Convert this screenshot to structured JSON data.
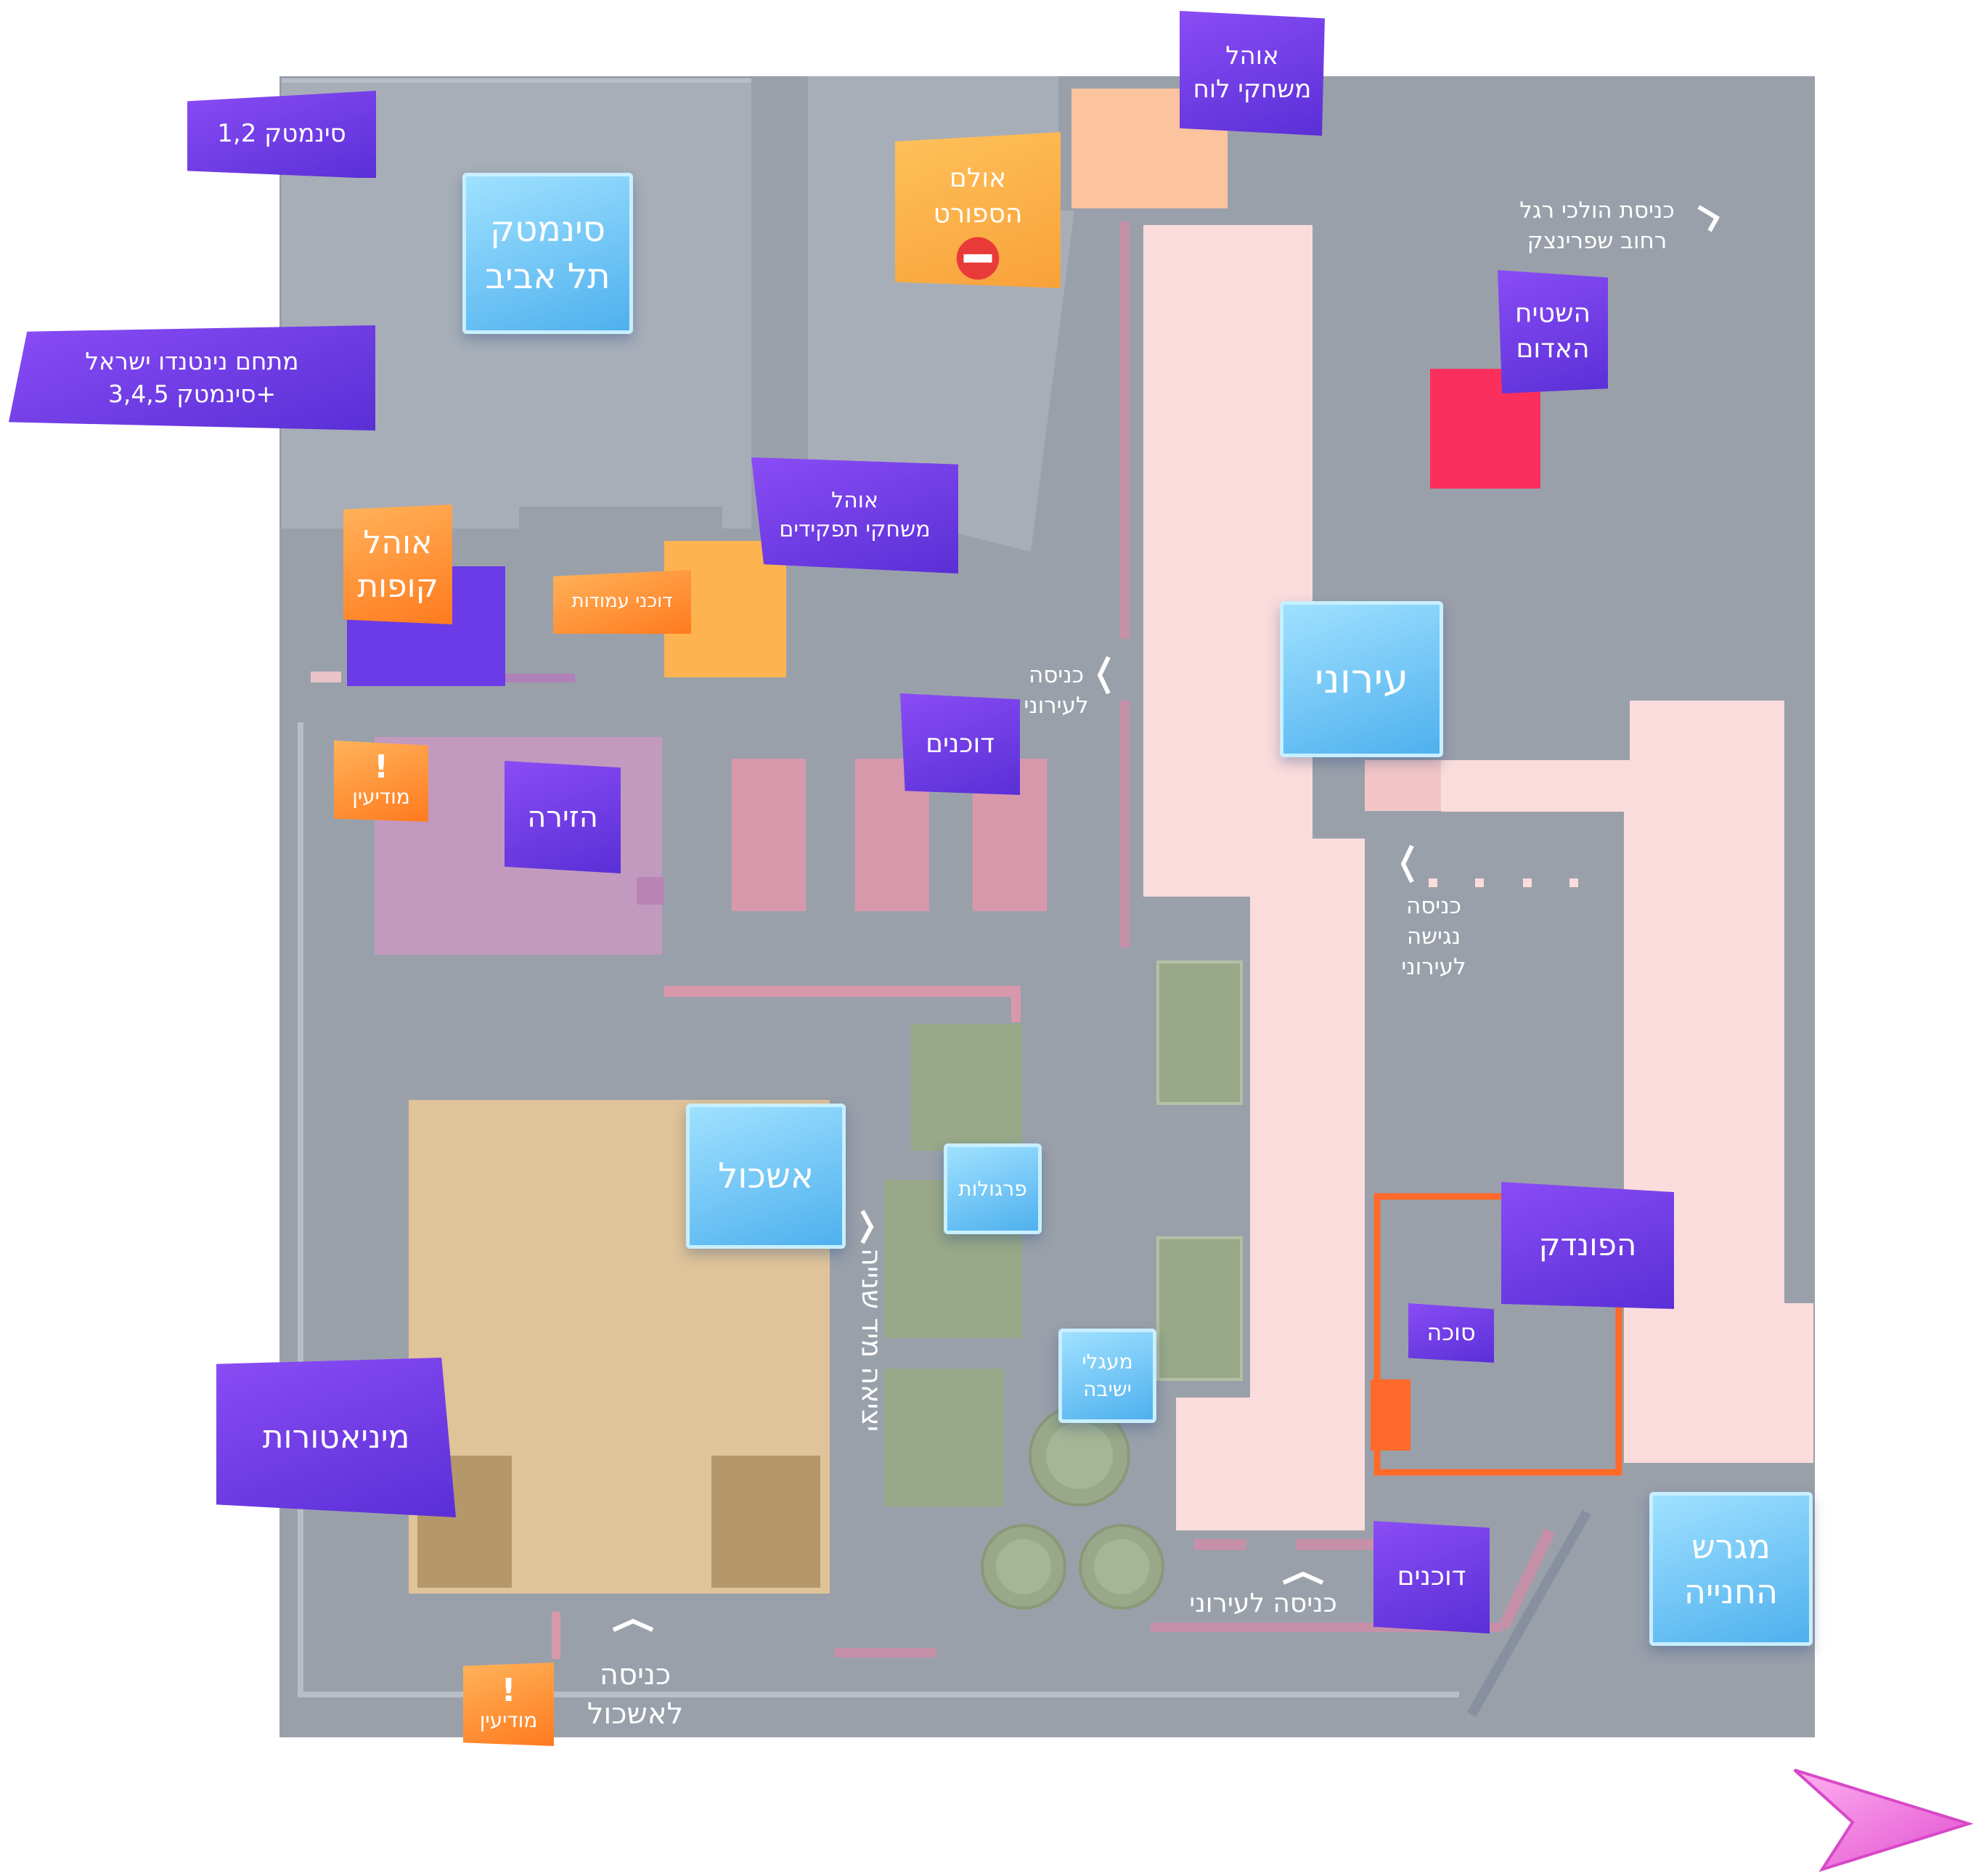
{
  "labels": {
    "cinematheque_12": "סינמטק 1,2",
    "cinematheque_ta": "סינמטק\nתל אביב",
    "nintendo": "מתחם נינטנדו ישראל\n+סינמטק 3,4,5",
    "board_games_tent": "אוהל\nמשחקי לוח",
    "sport_hall": "אולם\nהספורט",
    "red_carpet": "השטיח\nהאדום",
    "pedestrian_entrance": "כניסת הולכי רגל\nרחוב שפרינצק",
    "role_play_tent": "אוהל\nמשחקי תפקידים",
    "box_office_tent": "אוהל\nקופות",
    "column_stalls": "דוכני עמודות",
    "ironi": "עירוני",
    "ironi_entrance": "כניסה\nלעירוני",
    "stalls_top": "דוכנים",
    "info_top": "מודיעין",
    "arena": "הזירה",
    "accessible_entrance": "כניסה\nנגישה\nלעירוני",
    "eshkol": "אשכול",
    "pergolas": "פרגולות",
    "side_exit": "יציאה מיד שנייה",
    "inn": "הפונדק",
    "sukkah": "סוכה",
    "miniatures": "מיניאטורות",
    "seating_circles": "מעגלי\nישיבה",
    "stalls_bottom": "דוכנים",
    "ironi_entrance_bottom": "כניסה לעירוני",
    "parking_lot": "מגרש\nהחנייה",
    "eshkol_entrance": "כניסה\nלאשכול",
    "info_bottom": "מודיעין",
    "exclaim": "!"
  },
  "colors": {
    "ground": "#9aa0aa",
    "building_gray": "#a7aeb8",
    "ironi_pink": "#fadcdc",
    "stall_pink": "#d898ac",
    "arena_purple": "#c29ac0",
    "eshkol_tan": "#dfc399",
    "green_pergola": "#98a888",
    "red_carpet": "#fb2f5c",
    "inn_orange": "#ff6a2a",
    "brand_purple": "#6a3be6",
    "brand_blue": "#5bbcf2",
    "brand_orange": "#ff8a2a",
    "compass_pink": "#f070d8"
  },
  "icons": {
    "no_entry": "no-entry-icon",
    "north_arrow": "north-arrow-icon"
  }
}
